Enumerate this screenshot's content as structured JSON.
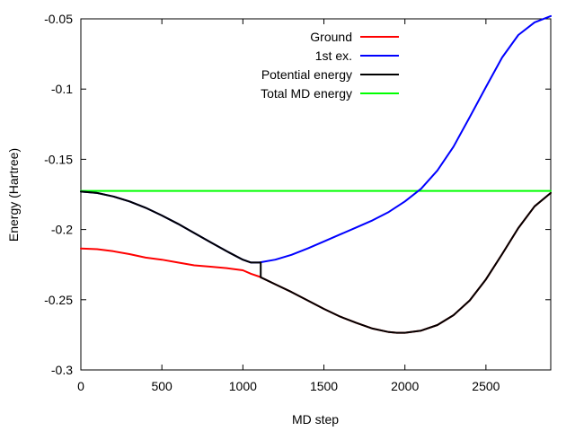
{
  "chart_data": {
    "type": "line",
    "title": "",
    "xlabel": "MD step",
    "ylabel": "Energy (Hartree)",
    "xlim": [
      0,
      2900
    ],
    "ylim": [
      -0.3,
      -0.05
    ],
    "xticks": [
      0,
      500,
      1000,
      1500,
      2000,
      2500
    ],
    "xtick_labels": [
      "0",
      "500",
      "1000",
      "1500",
      "2000",
      "2500"
    ],
    "yticks": [
      -0.3,
      -0.25,
      -0.2,
      -0.15,
      -0.1,
      -0.05
    ],
    "ytick_labels": [
      "-0.3",
      "-0.25",
      "-0.2",
      "-0.15",
      "-0.1",
      "-0.05"
    ],
    "grid": false,
    "legend_position": "top-right",
    "series": [
      {
        "name": "Ground",
        "color": "#ff0000",
        "x": [
          0,
          100,
          200,
          300,
          400,
          500,
          600,
          700,
          800,
          900,
          1000,
          1050,
          1100,
          1200,
          1300,
          1400,
          1500,
          1600,
          1700,
          1800,
          1900,
          1950,
          2000,
          2100,
          2200,
          2300,
          2400,
          2500,
          2600,
          2700,
          2800,
          2900
        ],
        "y": [
          -0.2135,
          -0.214,
          -0.2155,
          -0.2175,
          -0.22,
          -0.2215,
          -0.2235,
          -0.2255,
          -0.2265,
          -0.2275,
          -0.229,
          -0.2315,
          -0.2335,
          -0.239,
          -0.2445,
          -0.2505,
          -0.2565,
          -0.262,
          -0.2665,
          -0.2705,
          -0.273,
          -0.2735,
          -0.2735,
          -0.272,
          -0.268,
          -0.261,
          -0.2505,
          -0.2355,
          -0.2175,
          -0.199,
          -0.1835,
          -0.174
        ]
      },
      {
        "name": "1st ex.",
        "color": "#0000ff",
        "x": [
          0,
          100,
          200,
          300,
          400,
          500,
          600,
          700,
          800,
          900,
          1000,
          1050,
          1100,
          1200,
          1300,
          1400,
          1500,
          1600,
          1700,
          1800,
          1900,
          2000,
          2100,
          2200,
          2300,
          2400,
          2500,
          2600,
          2700,
          2800,
          2900
        ],
        "y": [
          -0.173,
          -0.174,
          -0.1765,
          -0.18,
          -0.1845,
          -0.19,
          -0.196,
          -0.2025,
          -0.209,
          -0.2155,
          -0.2215,
          -0.2235,
          -0.2235,
          -0.2215,
          -0.218,
          -0.2135,
          -0.2085,
          -0.2035,
          -0.1985,
          -0.1935,
          -0.1875,
          -0.18,
          -0.171,
          -0.158,
          -0.141,
          -0.12,
          -0.0985,
          -0.0775,
          -0.0615,
          -0.0525,
          -0.048
        ]
      },
      {
        "name": "Potential energy",
        "color": "#000000",
        "x": [
          0,
          100,
          200,
          300,
          400,
          500,
          600,
          700,
          800,
          900,
          1000,
          1050,
          1110,
          1110,
          1200,
          1300,
          1400,
          1500,
          1600,
          1700,
          1800,
          1900,
          1950,
          2000,
          2100,
          2200,
          2300,
          2400,
          2500,
          2600,
          2700,
          2800,
          2900
        ],
        "y": [
          -0.173,
          -0.174,
          -0.1765,
          -0.18,
          -0.1845,
          -0.19,
          -0.196,
          -0.2025,
          -0.209,
          -0.2155,
          -0.2215,
          -0.2235,
          -0.2235,
          -0.234,
          -0.239,
          -0.2445,
          -0.2505,
          -0.2565,
          -0.262,
          -0.2665,
          -0.2705,
          -0.273,
          -0.2735,
          -0.2735,
          -0.272,
          -0.268,
          -0.261,
          -0.2505,
          -0.2355,
          -0.2175,
          -0.199,
          -0.1835,
          -0.174
        ]
      },
      {
        "name": "Total MD energy",
        "color": "#00ff00",
        "x": [
          0,
          2900
        ],
        "y": [
          -0.1725,
          -0.1725
        ]
      }
    ]
  }
}
